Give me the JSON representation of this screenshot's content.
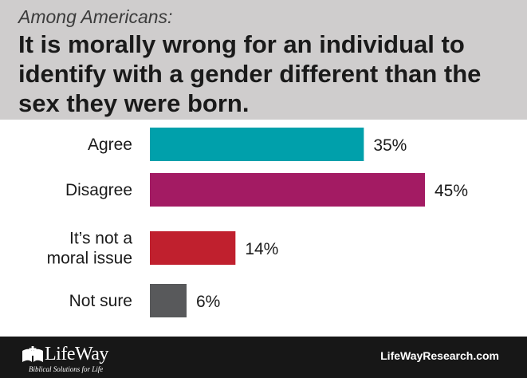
{
  "header": {
    "subtitle": "Among Americans:",
    "title": "It is morally wrong for an individual to identify with a gender different than the sex they were born."
  },
  "chart_data": {
    "type": "bar",
    "orientation": "horizontal",
    "categories": [
      [
        "Agree"
      ],
      [
        "Disagree"
      ],
      [
        "It’s not a",
        "moral issue"
      ],
      [
        "Not sure"
      ]
    ],
    "values": [
      35,
      45,
      14,
      6
    ],
    "value_labels": [
      "35%",
      "45%",
      "14%",
      "6%"
    ],
    "colors": [
      "#00a0ab",
      "#a31b63",
      "#c0202e",
      "#58595b"
    ],
    "xlim": [
      0,
      45
    ],
    "grid": false,
    "legend": "none"
  },
  "footer": {
    "logo_text": "LifeWay",
    "logo_tagline": "Biblical Solutions for Life",
    "website": "LifeWayResearch.com"
  }
}
